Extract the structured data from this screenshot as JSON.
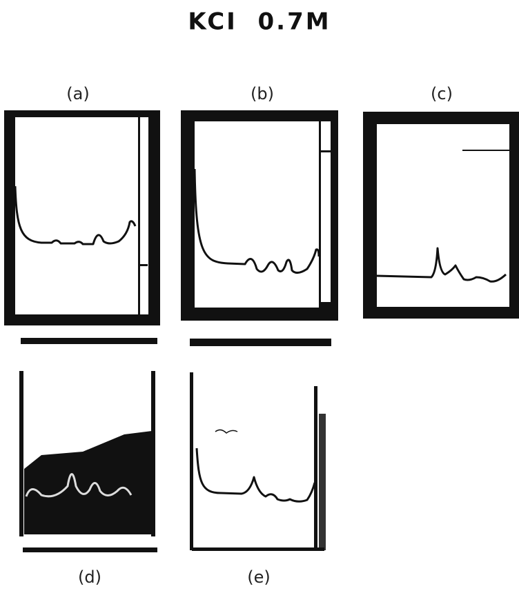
{
  "title": "KCI  0.7M",
  "panels": [
    {
      "label": "(a)"
    },
    {
      "label": "(b)"
    },
    {
      "label": "(c)"
    },
    {
      "label": "(d)"
    },
    {
      "label": "(e)"
    }
  ]
}
